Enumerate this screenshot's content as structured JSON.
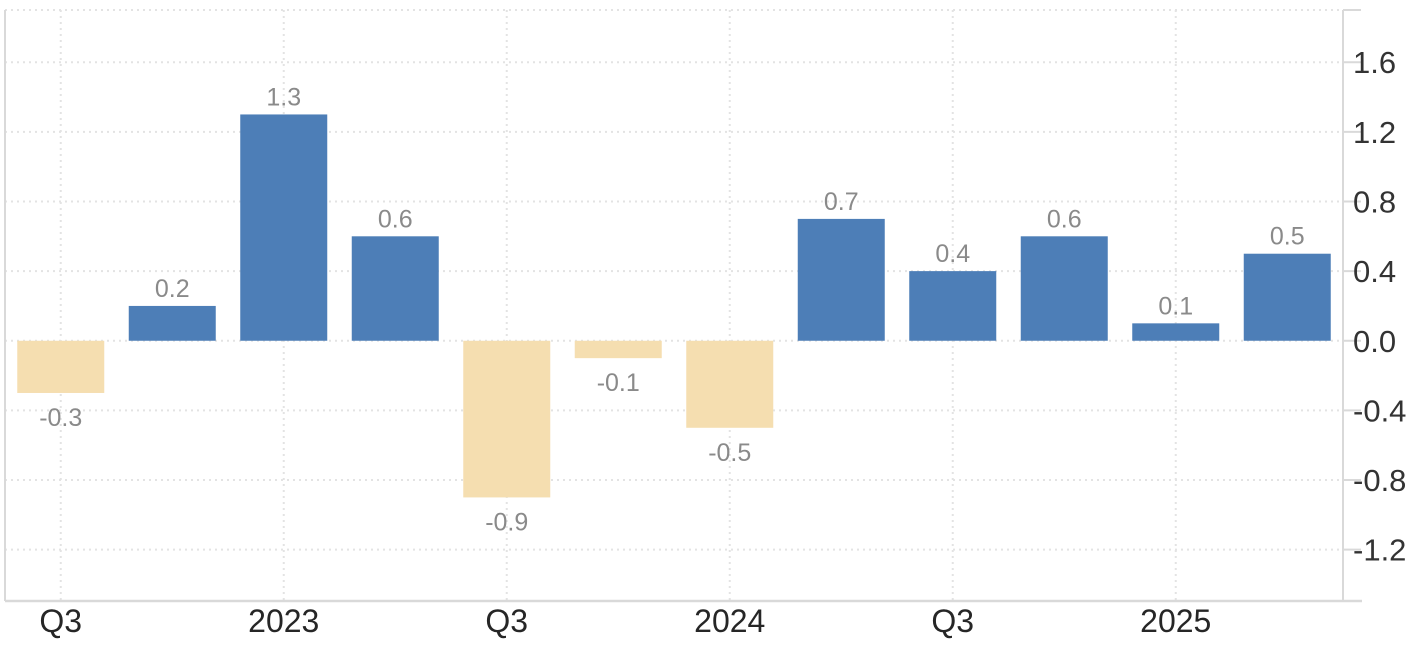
{
  "chart_data": {
    "type": "bar",
    "title": "",
    "values": [
      -0.3,
      0.2,
      1.3,
      0.6,
      -0.9,
      -0.1,
      -0.5,
      0.7,
      0.4,
      0.6,
      0.1,
      0.5
    ],
    "bar_labels": [
      "-0.3",
      "0.2",
      "1.3",
      "0.6",
      "-0.9",
      "-0.1",
      "-0.5",
      "0.7",
      "0.4",
      "0.6",
      "0.1",
      "0.5"
    ],
    "x_axis": {
      "ticks": [
        {
          "index": 0,
          "label": "Q3"
        },
        {
          "index": 2,
          "label": "2023"
        },
        {
          "index": 4,
          "label": "Q3"
        },
        {
          "index": 6,
          "label": "2024"
        },
        {
          "index": 8,
          "label": "Q3"
        },
        {
          "index": 10,
          "label": "2025"
        }
      ]
    },
    "y_axis": {
      "side": "right",
      "ticks": [
        "1.6",
        "1.2",
        "0.8",
        "0.4",
        "0.0",
        "-0.4",
        "-0.8",
        "-1.2"
      ]
    },
    "ylim": [
      -1.495,
      1.9
    ],
    "grid": "dotted",
    "legend": "none",
    "colors": {
      "bar_positive": "#4d7eb7",
      "bar_negative": "#f5deb0",
      "value_label": "#8a8a8a",
      "x_label": "#262626",
      "y_label": "#333333",
      "gridline": "#e3e3e3",
      "axis_line": "#d9d9d9",
      "background": "#ffffff"
    }
  }
}
